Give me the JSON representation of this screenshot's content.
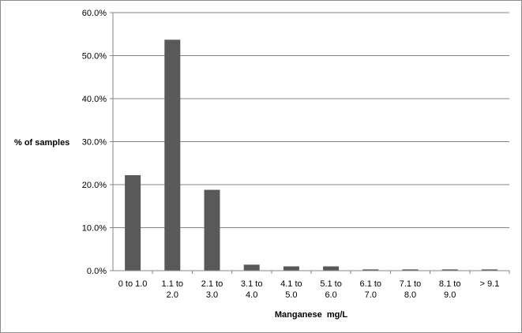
{
  "chart_data": {
    "type": "bar",
    "title": "",
    "xlabel": "Manganese  mg/L",
    "ylabel": "% of samples",
    "categories": [
      [
        "0 to 1.0"
      ],
      [
        "1.1 to",
        "2.0"
      ],
      [
        "2.1 to",
        "3.0"
      ],
      [
        "3.1 to",
        "4.0"
      ],
      [
        "4.1 to",
        "5.0"
      ],
      [
        "5.1 to",
        "6.0"
      ],
      [
        "6.1 to",
        "7.0"
      ],
      [
        "7.1 to",
        "8.0"
      ],
      [
        "8.1 to",
        "9.0"
      ],
      [
        "> 9.1"
      ]
    ],
    "values": [
      22.2,
      53.7,
      18.8,
      1.4,
      1.0,
      1.0,
      0.3,
      0.3,
      0.3,
      0.3
    ],
    "ylim": [
      0,
      60
    ],
    "yticks": [
      0,
      10,
      20,
      30,
      40,
      50,
      60
    ],
    "ytick_labels": [
      "0.0%",
      "10.0%",
      "20.0%",
      "30.0%",
      "40.0%",
      "50.0%",
      "60.0%"
    ],
    "grid": true,
    "legend": "none",
    "bar_color": "#595959",
    "grid_color": "#868686"
  }
}
